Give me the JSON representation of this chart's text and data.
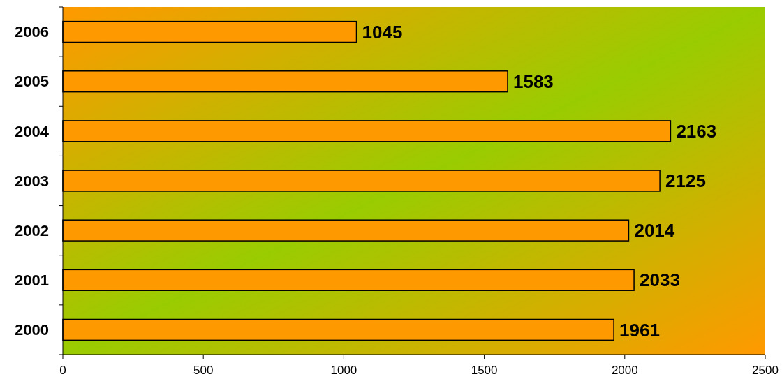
{
  "chart_data": {
    "type": "bar",
    "orientation": "horizontal",
    "categories": [
      "2006",
      "2005",
      "2004",
      "2003",
      "2002",
      "2001",
      "2000"
    ],
    "values": [
      1045,
      1583,
      2163,
      2125,
      2014,
      2033,
      1961
    ],
    "color": "#ff9900",
    "xlim": [
      0,
      2500
    ],
    "xticks": [
      0,
      500,
      1000,
      1500,
      2000,
      2500
    ],
    "data_labels": true,
    "grid": false
  }
}
